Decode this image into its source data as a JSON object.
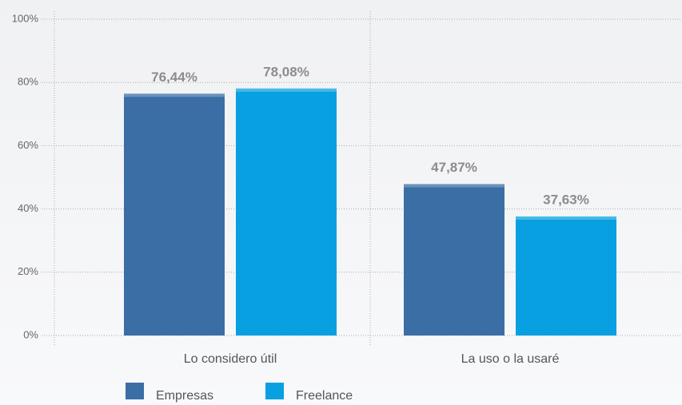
{
  "chart_data": {
    "type": "bar",
    "categories": [
      "Lo considero útil",
      "La uso o la usaré"
    ],
    "series": [
      {
        "name": "Empresas",
        "color": "#3a6ea5",
        "values": [
          76.44,
          47.87
        ],
        "value_labels": [
          "76,44%",
          "47,87%"
        ]
      },
      {
        "name": "Freelance",
        "color": "#08a0e0",
        "values": [
          78.08,
          37.63
        ],
        "value_labels": [
          "78,08%",
          "37,63%"
        ]
      }
    ],
    "ylim": [
      0,
      100
    ],
    "yticks": [
      {
        "value": 0,
        "label": "0%"
      },
      {
        "value": 20,
        "label": "20%"
      },
      {
        "value": 40,
        "label": "40%"
      },
      {
        "value": 60,
        "label": "60%"
      },
      {
        "value": 80,
        "label": "80%"
      },
      {
        "value": 100,
        "label": "100%"
      }
    ],
    "grid": true,
    "legend": "bottom"
  }
}
